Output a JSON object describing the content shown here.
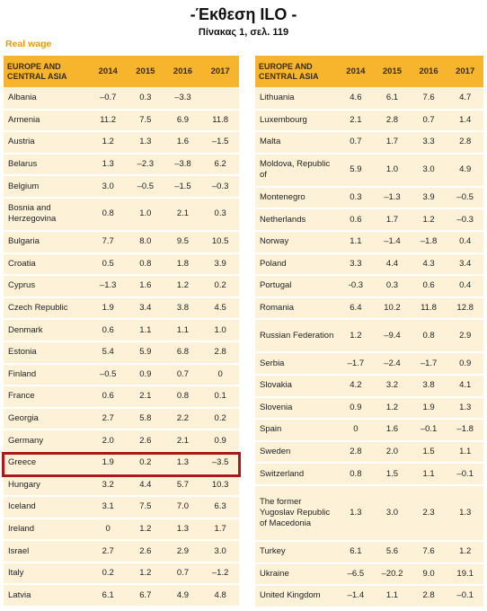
{
  "header": {
    "title": "-Έκθεση ILO -",
    "subtitle": "Πίνακας 1, σελ. 119",
    "section": "Real wage"
  },
  "table": {
    "region_label": "EUROPE AND CENTRAL ASIA",
    "years": [
      "2014",
      "2015",
      "2016",
      "2017"
    ],
    "highlighted_country": "Greece",
    "left_rows": [
      {
        "country": "Albania",
        "values": [
          "–0.7",
          "0.3",
          "–3.3",
          ""
        ]
      },
      {
        "country": "Armenia",
        "values": [
          "11.2",
          "7.5",
          "6.9",
          "11.8"
        ]
      },
      {
        "country": "Austria",
        "values": [
          "1.2",
          "1.3",
          "1.6",
          "–1.5"
        ]
      },
      {
        "country": "Belarus",
        "values": [
          "1.3",
          "–2.3",
          "–3.8",
          "6.2"
        ]
      },
      {
        "country": "Belgium",
        "values": [
          "3.0",
          "–0.5",
          "–1.5",
          "–0.3"
        ]
      },
      {
        "country": "Bosnia and Herzegovina",
        "values": [
          "0.8",
          "1.0",
          "2.1",
          "0.3"
        ],
        "tall": true
      },
      {
        "country": "Bulgaria",
        "values": [
          "7.7",
          "8.0",
          "9.5",
          "10.5"
        ]
      },
      {
        "country": "Croatia",
        "values": [
          "0.5",
          "0.8",
          "1.8",
          "3.9"
        ]
      },
      {
        "country": "Cyprus",
        "values": [
          "–1.3",
          "1.6",
          "1.2",
          "0.2"
        ]
      },
      {
        "country": "Czech Republic",
        "values": [
          "1.9",
          "3.4",
          "3.8",
          "4.5"
        ]
      },
      {
        "country": "Denmark",
        "values": [
          "0.6",
          "1.1",
          "1.1",
          "1.0"
        ]
      },
      {
        "country": "Estonia",
        "values": [
          "5.4",
          "5.9",
          "6.8",
          "2.8"
        ]
      },
      {
        "country": "Finland",
        "values": [
          "–0.5",
          "0.9",
          "0.7",
          "0"
        ]
      },
      {
        "country": "France",
        "values": [
          "0.6",
          "2.1",
          "0.8",
          "0.1"
        ]
      },
      {
        "country": "Georgia",
        "values": [
          "2.7",
          "5.8",
          "2.2",
          "0.2"
        ]
      },
      {
        "country": "Germany",
        "values": [
          "2.0",
          "2.6",
          "2.1",
          "0.9"
        ]
      },
      {
        "country": "Greece",
        "values": [
          "1.9",
          "0.2",
          "1.3",
          "–3.5"
        ]
      },
      {
        "country": "Hungary",
        "values": [
          "3.2",
          "4.4",
          "5.7",
          "10.3"
        ]
      },
      {
        "country": "Iceland",
        "values": [
          "3.1",
          "7.5",
          "7.0",
          "6.3"
        ]
      },
      {
        "country": "Ireland",
        "values": [
          "0",
          "1.2",
          "1.3",
          "1.7"
        ]
      },
      {
        "country": "Israel",
        "values": [
          "2.7",
          "2.6",
          "2.9",
          "3.0"
        ]
      },
      {
        "country": "Italy",
        "values": [
          "0.2",
          "1.2",
          "0.7",
          "–1.2"
        ]
      },
      {
        "country": "Latvia",
        "values": [
          "6.1",
          "6.7",
          "4.9",
          "4.8"
        ]
      }
    ],
    "right_rows": [
      {
        "country": "Lithuania",
        "values": [
          "4.6",
          "6.1",
          "7.6",
          "4.7"
        ]
      },
      {
        "country": "Luxembourg",
        "values": [
          "2.1",
          "2.8",
          "0.7",
          "1.4"
        ]
      },
      {
        "country": "Malta",
        "values": [
          "0.7",
          "1.7",
          "3.3",
          "2.8"
        ]
      },
      {
        "country": "Moldova, Republic of",
        "values": [
          "5.9",
          "1.0",
          "3.0",
          "4.9"
        ],
        "tall": true
      },
      {
        "country": "Montenegro",
        "values": [
          "0.3",
          "–1.3",
          "3.9",
          "–0.5"
        ]
      },
      {
        "country": "Netherlands",
        "values": [
          "0.6",
          "1.7",
          "1.2",
          "–0.3"
        ]
      },
      {
        "country": "Norway",
        "values": [
          "1.1",
          "–1.4",
          "–1.8",
          "0.4"
        ]
      },
      {
        "country": "Poland",
        "values": [
          "3.3",
          "4.4",
          "4.3",
          "3.4"
        ]
      },
      {
        "country": "Portugal",
        "values": [
          "-0.3",
          "0.3",
          "0.6",
          "0.4"
        ]
      },
      {
        "country": "Romania",
        "values": [
          "6.4",
          "10.2",
          "11.8",
          "12.8"
        ]
      },
      {
        "country": "Russian Federation",
        "values": [
          "1.2",
          "–9.4",
          "0.8",
          "2.9"
        ],
        "tall": true
      },
      {
        "country": "Serbia",
        "values": [
          "–1.7",
          "–2.4",
          "–1.7",
          "0.9"
        ]
      },
      {
        "country": "Slovakia",
        "values": [
          "4.2",
          "3.2",
          "3.8",
          "4.1"
        ]
      },
      {
        "country": "Slovenia",
        "values": [
          "0.9",
          "1.2",
          "1.9",
          "1.3"
        ]
      },
      {
        "country": "Spain",
        "values": [
          "0",
          "1.6",
          "–0.1",
          "–1.8"
        ]
      },
      {
        "country": "Sweden",
        "values": [
          "2.8",
          "2.0",
          "1.5",
          "1.1"
        ]
      },
      {
        "country": "Switzerland",
        "values": [
          "0.8",
          "1.5",
          "1.1",
          "–0.1"
        ]
      },
      {
        "country": "The former Yugoslav Republic of Macedonia",
        "values": [
          "1.3",
          "3.0",
          "2.3",
          "1.3"
        ],
        "xtall": true
      },
      {
        "country": "Turkey",
        "values": [
          "6.1",
          "5.6",
          "7.6",
          "1.2"
        ]
      },
      {
        "country": "Ukraine",
        "values": [
          "–6.5",
          "–20.2",
          "9.0",
          "19.1"
        ]
      },
      {
        "country": "United Kingdom",
        "values": [
          "–1.4",
          "1.1",
          "2.8",
          "–0.1"
        ]
      }
    ]
  },
  "colors": {
    "header_bg": "#f6b52c",
    "row_bg": "#fdf2d8",
    "section_label": "#e59c12",
    "highlight_border": "#b01818"
  }
}
